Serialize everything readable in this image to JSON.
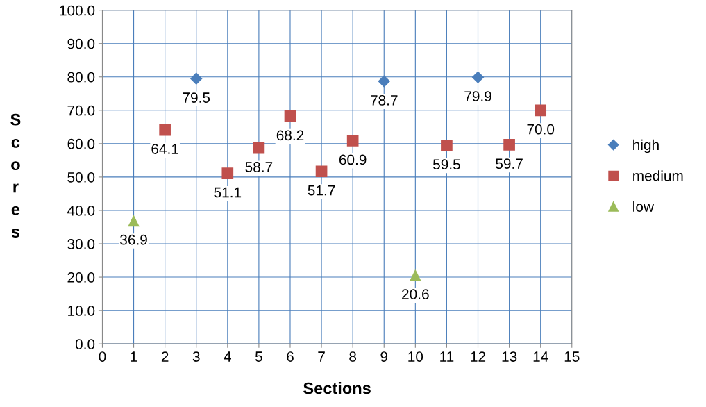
{
  "chart_data": {
    "type": "scatter",
    "xlabel": "Sections",
    "ylabel": "Scores",
    "xlim": [
      0,
      15
    ],
    "xticks": [
      0,
      1,
      2,
      3,
      4,
      5,
      6,
      7,
      8,
      9,
      10,
      11,
      12,
      13,
      14,
      15
    ],
    "ylim": [
      0,
      100
    ],
    "yticks": [
      {
        "value": 0,
        "label": "0.0"
      },
      {
        "value": 10,
        "label": "10.0"
      },
      {
        "value": 20,
        "label": "20.0"
      },
      {
        "value": 30,
        "label": "30.0"
      },
      {
        "value": 40,
        "label": "40.0"
      },
      {
        "value": 50,
        "label": "50.0"
      },
      {
        "value": 60,
        "label": "60.0"
      },
      {
        "value": 70,
        "label": "70.0"
      },
      {
        "value": 80,
        "label": "80.0"
      },
      {
        "value": 90,
        "label": "90.0"
      },
      {
        "value": 100,
        "label": "100.0"
      }
    ],
    "grid": true,
    "legend": "right",
    "series": [
      {
        "name": "high",
        "color": "#4a7ebb",
        "marker": "diamond",
        "x": [
          3,
          9,
          12
        ],
        "values": [
          79.5,
          78.7,
          79.9
        ],
        "value_labels": [
          "79.5",
          "78.7",
          "79.9"
        ]
      },
      {
        "name": "medium",
        "color": "#c0504d",
        "marker": "square",
        "x": [
          2,
          4,
          5,
          6,
          7,
          8,
          11,
          13,
          14
        ],
        "values": [
          64.1,
          51.1,
          58.7,
          68.2,
          51.7,
          60.9,
          59.5,
          59.7,
          70.0
        ],
        "value_labels": [
          "64.1",
          "51.1",
          "58.7",
          "68.2",
          "51.7",
          "60.9",
          "59.5",
          "59.7",
          "70.0"
        ]
      },
      {
        "name": "low",
        "color": "#9bbb59",
        "marker": "triangle",
        "x": [
          1,
          10
        ],
        "values": [
          36.9,
          20.6
        ],
        "value_labels": [
          "36.9",
          "20.6"
        ]
      }
    ]
  }
}
